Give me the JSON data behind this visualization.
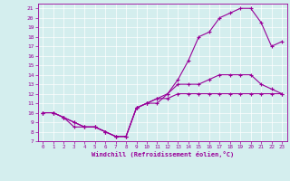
{
  "xlabel": "Windchill (Refroidissement éolien,°C)",
  "background_color": "#d4eeee",
  "line_color": "#990099",
  "xlim": [
    -0.5,
    23.5
  ],
  "ylim": [
    7,
    21.5
  ],
  "yticks": [
    7,
    8,
    9,
    10,
    11,
    12,
    13,
    14,
    15,
    16,
    17,
    18,
    19,
    20,
    21
  ],
  "xticks": [
    0,
    1,
    2,
    3,
    4,
    5,
    6,
    7,
    8,
    9,
    10,
    11,
    12,
    13,
    14,
    15,
    16,
    17,
    18,
    19,
    20,
    21,
    22,
    23
  ],
  "line1_x": [
    0,
    1,
    2,
    3,
    4,
    5,
    6,
    7,
    8,
    9,
    10,
    11,
    12,
    13,
    14,
    15,
    16,
    17,
    18,
    19,
    20,
    21,
    22,
    23
  ],
  "line1_y": [
    10,
    10,
    9.5,
    8.5,
    8.5,
    8.5,
    8,
    7.5,
    7.5,
    10.5,
    11,
    11.5,
    11.5,
    12,
    12,
    12,
    12,
    12,
    12,
    12,
    12,
    12,
    12,
    12
  ],
  "line2_x": [
    0,
    1,
    2,
    3,
    4,
    5,
    6,
    7,
    8,
    9,
    10,
    11,
    12,
    13,
    14,
    15,
    16,
    17,
    18,
    19,
    20,
    21,
    22,
    23
  ],
  "line2_y": [
    10,
    10,
    9.5,
    9,
    8.5,
    8.5,
    8,
    7.5,
    7.5,
    10.5,
    11,
    11.5,
    12,
    13.5,
    15.5,
    18,
    18.5,
    20,
    20.5,
    21,
    21,
    19.5,
    17,
    17.5
  ],
  "line3_x": [
    0,
    1,
    2,
    3,
    4,
    5,
    6,
    7,
    8,
    9,
    10,
    11,
    12,
    13,
    14,
    15,
    16,
    17,
    18,
    19,
    20,
    21,
    22,
    23
  ],
  "line3_y": [
    10,
    10,
    9.5,
    9,
    8.5,
    8.5,
    8,
    7.5,
    7.5,
    10.5,
    11,
    11,
    12,
    13,
    13,
    13,
    13.5,
    14,
    14,
    14,
    14,
    13,
    12.5,
    12
  ]
}
